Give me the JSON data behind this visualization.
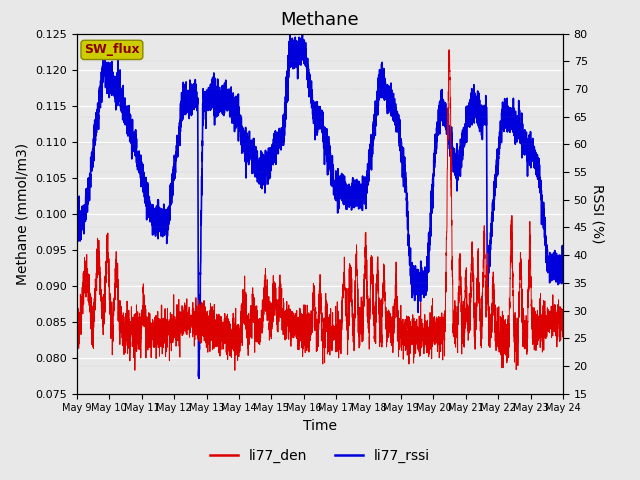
{
  "title": "Methane",
  "ylabel_left": "Methane (mmol/m3)",
  "ylabel_right": "RSSI (%)",
  "xlabel": "Time",
  "ylim_left": [
    0.075,
    0.125
  ],
  "ylim_right": [
    15,
    80
  ],
  "yticks_left": [
    0.075,
    0.08,
    0.085,
    0.09,
    0.095,
    0.1,
    0.105,
    0.11,
    0.115,
    0.12,
    0.125
  ],
  "yticks_right": [
    15,
    20,
    25,
    30,
    35,
    40,
    45,
    50,
    55,
    60,
    65,
    70,
    75,
    80
  ],
  "xtick_labels": [
    "May 9",
    "May 10",
    "May 11",
    "May 12",
    "May 13",
    "May 14",
    "May 15",
    "May 16",
    "May 17",
    "May 18",
    "May 19",
    "May 20",
    "May 21",
    "May 22",
    "May 23",
    "May 24"
  ],
  "color_red": "#dd0000",
  "color_blue": "#0000dd",
  "background_color": "#e8e8e8",
  "fig_background": "#e8e8e8",
  "legend_label_red": "li77_den",
  "legend_label_blue": "li77_rssi",
  "sw_flux_box_facecolor": "#cccc00",
  "sw_flux_box_edgecolor": "#888800",
  "sw_flux_text_color": "#880000",
  "grid_color": "#ffffff",
  "title_fontsize": 13,
  "axis_fontsize": 10,
  "tick_fontsize": 8,
  "legend_fontsize": 10,
  "n_days": 16,
  "n_per_day": 288
}
